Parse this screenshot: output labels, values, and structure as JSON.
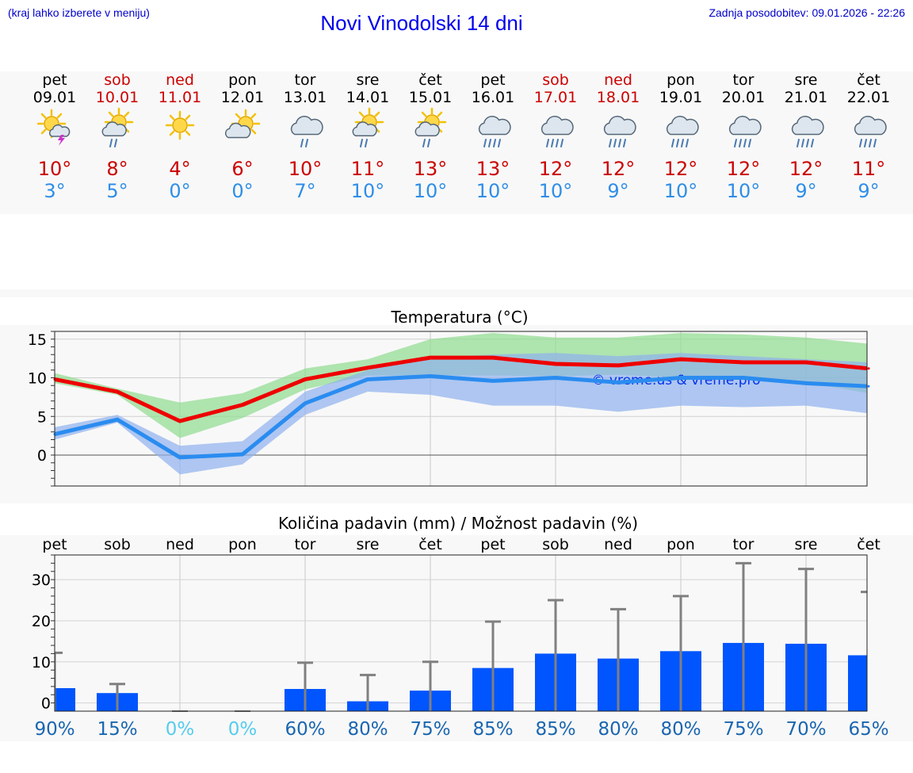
{
  "header": {
    "hint": "(kraj lahko izberete v meniju)",
    "title": "Novi Vinodolski 14 dni",
    "updated": "Zadnja posodobitev: 09.01.2026 - 22:26"
  },
  "days": [
    {
      "name": "pet",
      "date": "09.01",
      "weekend": false,
      "icon": "sun-cloud-thunder-icon",
      "tmax": "10°",
      "tmin": "3°",
      "pday": "pet"
    },
    {
      "name": "sob",
      "date": "10.01",
      "weekend": true,
      "icon": "sun-cloud-rain-icon",
      "tmax": "8°",
      "tmin": "5°",
      "pday": "sob"
    },
    {
      "name": "ned",
      "date": "11.01",
      "weekend": true,
      "icon": "sun-icon",
      "tmax": "4°",
      "tmin": "0°",
      "pday": "ned"
    },
    {
      "name": "pon",
      "date": "12.01",
      "weekend": false,
      "icon": "sun-cloud-icon",
      "tmax": "6°",
      "tmin": "0°",
      "pday": "pon"
    },
    {
      "name": "tor",
      "date": "13.01",
      "weekend": false,
      "icon": "cloud-rain-icon",
      "tmax": "10°",
      "tmin": "7°",
      "pday": "tor"
    },
    {
      "name": "sre",
      "date": "14.01",
      "weekend": false,
      "icon": "sun-cloud-rain-icon",
      "tmax": "11°",
      "tmin": "10°",
      "pday": "sre"
    },
    {
      "name": "čet",
      "date": "15.01",
      "weekend": false,
      "icon": "sun-cloud-rain-icon",
      "tmax": "13°",
      "tmin": "10°",
      "pday": "čet"
    },
    {
      "name": "pet",
      "date": "16.01",
      "weekend": false,
      "icon": "cloud-heavy-rain-icon",
      "tmax": "13°",
      "tmin": "10°",
      "pday": "pet"
    },
    {
      "name": "sob",
      "date": "17.01",
      "weekend": true,
      "icon": "cloud-heavy-rain-icon",
      "tmax": "12°",
      "tmin": "10°",
      "pday": "sob"
    },
    {
      "name": "ned",
      "date": "18.01",
      "weekend": true,
      "icon": "cloud-heavy-rain-icon",
      "tmax": "12°",
      "tmin": "9°",
      "pday": "ned"
    },
    {
      "name": "pon",
      "date": "19.01",
      "weekend": false,
      "icon": "cloud-heavy-rain-icon",
      "tmax": "12°",
      "tmin": "10°",
      "pday": "pon"
    },
    {
      "name": "tor",
      "date": "20.01",
      "weekend": false,
      "icon": "cloud-heavy-rain-icon",
      "tmax": "12°",
      "tmin": "10°",
      "pday": "tor"
    },
    {
      "name": "sre",
      "date": "21.01",
      "weekend": false,
      "icon": "cloud-heavy-rain-icon",
      "tmax": "12°",
      "tmin": "9°",
      "pday": "sre"
    },
    {
      "name": "čet",
      "date": "22.01",
      "weekend": false,
      "icon": "cloud-heavy-rain-icon",
      "tmax": "11°",
      "tmin": "9°",
      "pday": "čet"
    }
  ],
  "colors": {
    "weekday": "#000000",
    "weekend": "#cc0000",
    "tmax": "#cc0000",
    "tmin": "#2f8ee8",
    "max_line": "#ee0000",
    "max_band": "#8fdc8f",
    "min_line": "#2a8cf0",
    "min_band": "#8fb0ee",
    "bar": "#0055ff",
    "errbar": "#808080",
    "pct": "#1a66b0",
    "pct_zero": "#55ccee"
  },
  "chart_data": [
    {
      "type": "line",
      "title": "Temperatura (°C)",
      "ylim": [
        -4,
        16
      ],
      "yticks": [
        0,
        5,
        10,
        15
      ],
      "watermark": "© vreme.us & vreme.pro",
      "series": [
        {
          "name": "max",
          "values": [
            9.8,
            8.2,
            4.4,
            6.5,
            9.8,
            11.3,
            12.6,
            12.6,
            11.8,
            11.6,
            12.4,
            12.0,
            12.0,
            11.2
          ],
          "band_low": [
            9.3,
            7.8,
            2.2,
            4.8,
            8.5,
            10.3,
            10.3,
            10.3,
            10.2,
            10.4,
            10.0,
            9.8,
            9.4,
            8.0
          ],
          "band_high": [
            10.6,
            8.6,
            6.8,
            8.0,
            11.2,
            12.4,
            15.0,
            15.8,
            15.2,
            15.2,
            15.8,
            15.6,
            15.2,
            14.4
          ]
        },
        {
          "name": "min",
          "values": [
            2.7,
            4.6,
            -0.3,
            0.1,
            6.7,
            9.8,
            10.2,
            9.6,
            10.0,
            9.4,
            10.0,
            10.0,
            9.3,
            8.9
          ],
          "band_low": [
            2.0,
            4.2,
            -2.5,
            -1.2,
            5.2,
            8.2,
            7.8,
            6.4,
            6.4,
            5.6,
            6.4,
            6.2,
            6.4,
            5.4
          ],
          "band_high": [
            3.6,
            5.2,
            1.2,
            1.8,
            8.2,
            11.0,
            12.6,
            13.0,
            13.2,
            12.8,
            13.2,
            12.8,
            12.4,
            12.0
          ]
        }
      ]
    },
    {
      "type": "bar",
      "title": "Količina padavin (mm) / Možnost padavin (%)",
      "ylim": [
        -2,
        36
      ],
      "yticks": [
        0,
        10,
        20,
        30
      ],
      "values": [
        3.6,
        2.4,
        0,
        0,
        3.4,
        0.4,
        3.0,
        8.5,
        12.0,
        10.8,
        12.6,
        14.6,
        14.4,
        11.6
      ],
      "error_high": [
        12.2,
        4.6,
        0,
        0,
        9.8,
        6.8,
        10.0,
        19.8,
        25.0,
        22.8,
        26.0,
        34.0,
        32.6,
        27.0
      ],
      "probability": [
        "90%",
        "15%",
        "0%",
        "0%",
        "60%",
        "80%",
        "75%",
        "85%",
        "85%",
        "80%",
        "80%",
        "75%",
        "70%",
        "65%"
      ]
    }
  ]
}
